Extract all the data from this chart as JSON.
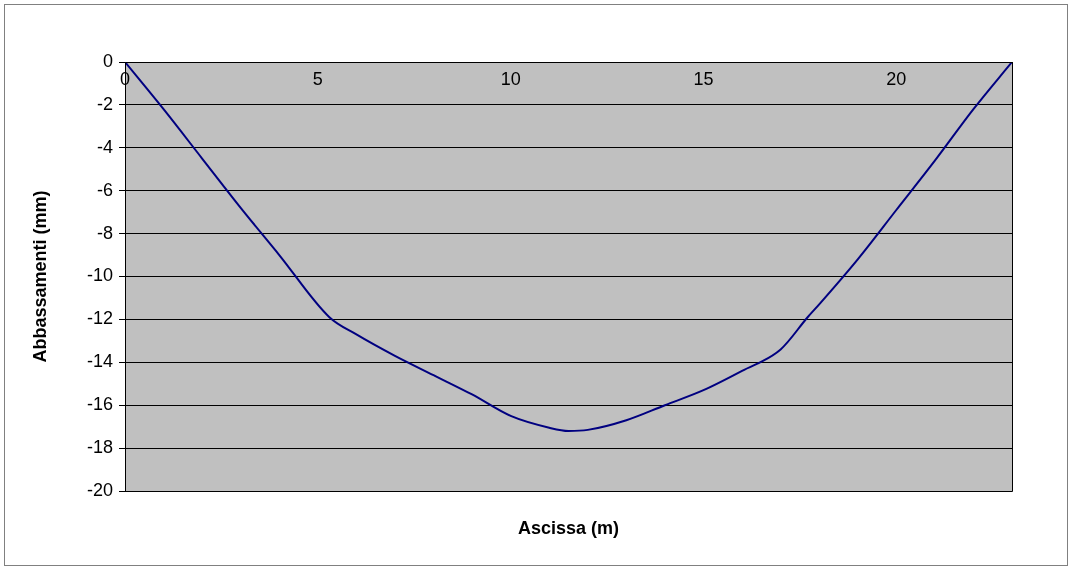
{
  "chart_data": {
    "type": "line",
    "xlabel": "Ascissa (m)",
    "ylabel": "Abbassamenti (mm)",
    "x": [
      0,
      1,
      2,
      3,
      4,
      5.3,
      6,
      7,
      8,
      9,
      10,
      11,
      11.5,
      12,
      13,
      14,
      15,
      16,
      17,
      17.7,
      18,
      19,
      20,
      21,
      22,
      23
    ],
    "series": [
      {
        "color": "#000080",
        "values": [
          0,
          -2.2,
          -4.5,
          -6.8,
          -9.0,
          -11.9,
          -12.7,
          -13.7,
          -14.6,
          -15.5,
          -16.5,
          -17.05,
          -17.2,
          -17.15,
          -16.7,
          -16.0,
          -15.3,
          -14.4,
          -13.4,
          -11.9,
          -11.3,
          -9.2,
          -6.9,
          -4.6,
          -2.2,
          0
        ]
      }
    ],
    "xlim": [
      0,
      23
    ],
    "xticks": [
      0,
      5,
      10,
      15,
      20
    ],
    "ylim": [
      -20,
      0
    ],
    "yticks": [
      0,
      -2,
      -4,
      -6,
      -8,
      -10,
      -12,
      -14,
      -16,
      -18,
      -20
    ],
    "grid": "y",
    "legend": false,
    "marker": "none",
    "line_style": "solid"
  }
}
